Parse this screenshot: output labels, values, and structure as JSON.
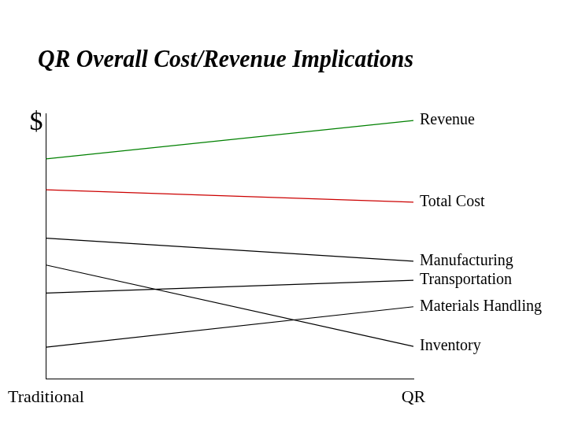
{
  "chart_data": {
    "type": "line",
    "title": "QR Overall Cost/Revenue Implications",
    "y_label": "$",
    "categories": [
      "Traditional",
      "QR"
    ],
    "series": [
      {
        "name": "Revenue",
        "color": "#008000",
        "values": [
          87.1,
          102.3
        ]
      },
      {
        "name": "Total Cost",
        "color": "#cc0000",
        "values": [
          74.9,
          70.0
        ]
      },
      {
        "name": "Manufacturing",
        "color": "#000000",
        "values": [
          55.7,
          46.6
        ]
      },
      {
        "name": "Transportation",
        "color": "#000000",
        "values": [
          34.0,
          39.1
        ]
      },
      {
        "name": "Materials Handling",
        "color": "#000000",
        "values": [
          12.6,
          28.6
        ]
      },
      {
        "name": "Inventory",
        "color": "#000000",
        "values": [
          45.1,
          12.9
        ]
      }
    ],
    "ylim": [
      0,
      105
    ],
    "grid": false,
    "tick_labels": "x"
  }
}
